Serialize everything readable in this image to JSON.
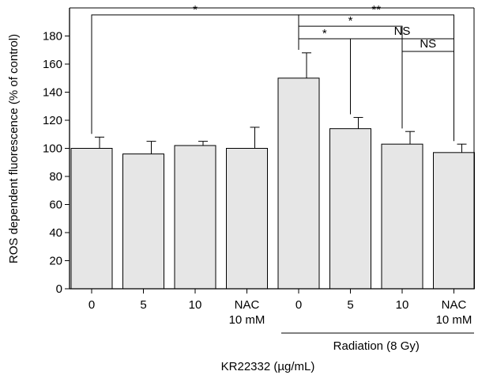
{
  "chart_data": {
    "type": "bar",
    "title": "",
    "ylabel": "ROS dependent fluorescence (% of control)",
    "xlabel": "KR22332 (µg/mL)",
    "ylim": [
      0,
      200
    ],
    "y_ticks": [
      0,
      20,
      40,
      60,
      80,
      100,
      120,
      140,
      160,
      180
    ],
    "grid": false,
    "categories": [
      {
        "line1": "0",
        "line2": ""
      },
      {
        "line1": "5",
        "line2": ""
      },
      {
        "line1": "10",
        "line2": ""
      },
      {
        "line1": "NAC",
        "line2": "10 mM"
      },
      {
        "line1": "0",
        "line2": ""
      },
      {
        "line1": "5",
        "line2": ""
      },
      {
        "line1": "10",
        "line2": ""
      },
      {
        "line1": "NAC",
        "line2": "10 mM"
      }
    ],
    "values": [
      100,
      96,
      102,
      100,
      150,
      114,
      103,
      97
    ],
    "errors": [
      8,
      9,
      3,
      15,
      18,
      8,
      9,
      6
    ],
    "bar_color": "#e6e6e6",
    "group_label": {
      "text": "Radiation (8 Gy)",
      "from": 4,
      "to": 7
    },
    "significance": [
      {
        "from": 0,
        "to": 4,
        "label": "*",
        "level": 195
      },
      {
        "from": 4,
        "to": 7,
        "label": "**",
        "level": 195
      },
      {
        "from": 4,
        "to": 6,
        "label": "*",
        "level": 187
      },
      {
        "from": 4,
        "to": 5,
        "label": "*",
        "level": 178
      },
      {
        "from": 5,
        "to": 7,
        "label": "NS",
        "level": 178
      },
      {
        "from": 6,
        "to": 7,
        "label": "NS",
        "level": 169
      }
    ]
  }
}
